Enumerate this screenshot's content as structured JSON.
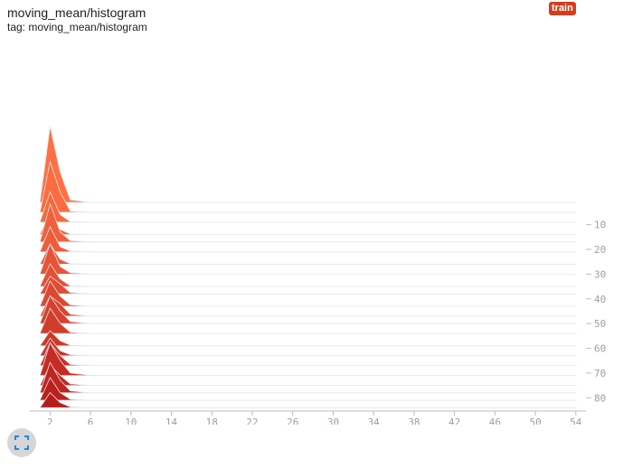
{
  "card": {
    "title": "moving_mean/histogram",
    "tag": "tag: moving_mean/histogram",
    "run": "train"
  },
  "icons": {
    "expand": "fullscreen-icon"
  },
  "colors": {
    "oldest": "#ff7043",
    "newest": "#b71c1c",
    "badge": "#d23f1d",
    "outline": "#e6e6e6"
  },
  "chart_data": {
    "type": "histogram",
    "mode": "offset",
    "x_ticks": [
      2,
      6,
      10,
      14,
      18,
      22,
      26,
      30,
      34,
      38,
      42,
      46,
      50,
      54
    ],
    "x_range": [
      0,
      55
    ],
    "step_ticks": [
      10,
      20,
      30,
      40,
      50,
      60,
      70,
      80
    ],
    "step_range": [
      1,
      85
    ],
    "bins": [
      1,
      2,
      3,
      4,
      6,
      10,
      20,
      54
    ],
    "series": [
      {
        "step": 1,
        "counts": [
          0,
          3.0,
          1.2,
          0.1,
          0,
          0,
          0,
          0
        ]
      },
      {
        "step": 5,
        "counts": [
          0,
          2.0,
          0.8,
          0.05,
          0,
          0,
          0,
          0
        ]
      },
      {
        "step": 9,
        "counts": [
          0,
          1.2,
          0.3,
          0.02,
          0,
          0,
          0,
          0
        ]
      },
      {
        "step": 14,
        "counts": [
          0,
          0.9,
          0.2,
          0.02,
          0,
          0,
          0,
          0
        ]
      },
      {
        "step": 17,
        "counts": [
          0,
          1.5,
          0.4,
          0.05,
          0.01,
          0,
          0,
          0
        ]
      },
      {
        "step": 21,
        "counts": [
          0,
          1.0,
          0.2,
          0.03,
          0,
          0,
          0,
          0
        ]
      },
      {
        "step": 26,
        "counts": [
          0,
          0.8,
          0.2,
          0.02,
          0,
          0,
          0,
          0
        ]
      },
      {
        "step": 30,
        "counts": [
          0,
          1.2,
          0.3,
          0.05,
          0.01,
          0,
          0,
          0
        ]
      },
      {
        "step": 35,
        "counts": [
          0,
          0.9,
          0.3,
          0.03,
          0,
          0,
          0,
          0
        ]
      },
      {
        "step": 38,
        "counts": [
          0,
          0.7,
          0.4,
          0.05,
          0,
          0,
          0,
          0
        ]
      },
      {
        "step": 43,
        "counts": [
          0,
          1.0,
          0.4,
          0.06,
          0,
          0,
          0,
          0
        ]
      },
      {
        "step": 47,
        "counts": [
          0,
          0.8,
          0.5,
          0.08,
          0,
          0,
          0,
          0
        ]
      },
      {
        "step": 50,
        "counts": [
          0,
          1.1,
          0.5,
          0.08,
          0,
          0,
          0,
          0
        ]
      },
      {
        "step": 54,
        "counts": [
          0,
          1.0,
          0.4,
          0.05,
          0,
          0,
          0,
          0
        ]
      },
      {
        "step": 59,
        "counts": [
          0,
          0.6,
          0.2,
          0.03,
          0,
          0,
          0,
          0
        ]
      },
      {
        "step": 63,
        "counts": [
          0,
          0.7,
          0.2,
          0.04,
          0,
          0,
          0,
          0
        ]
      },
      {
        "step": 67,
        "counts": [
          0,
          0.9,
          0.4,
          0.05,
          0,
          0,
          0,
          0
        ]
      },
      {
        "step": 71,
        "counts": [
          0,
          1.3,
          0.6,
          0.1,
          0.01,
          0,
          0,
          0
        ]
      },
      {
        "step": 75,
        "counts": [
          0,
          0.8,
          0.4,
          0.06,
          0,
          0,
          0,
          0
        ]
      },
      {
        "step": 78,
        "counts": [
          0,
          1.2,
          0.5,
          0.08,
          0,
          0,
          0,
          0
        ]
      },
      {
        "step": 81,
        "counts": [
          0,
          0.9,
          0.3,
          0.04,
          0,
          0,
          0,
          0
        ]
      },
      {
        "step": 84,
        "counts": [
          0,
          0.6,
          0.2,
          0.03,
          0,
          0,
          0,
          0
        ]
      }
    ]
  }
}
